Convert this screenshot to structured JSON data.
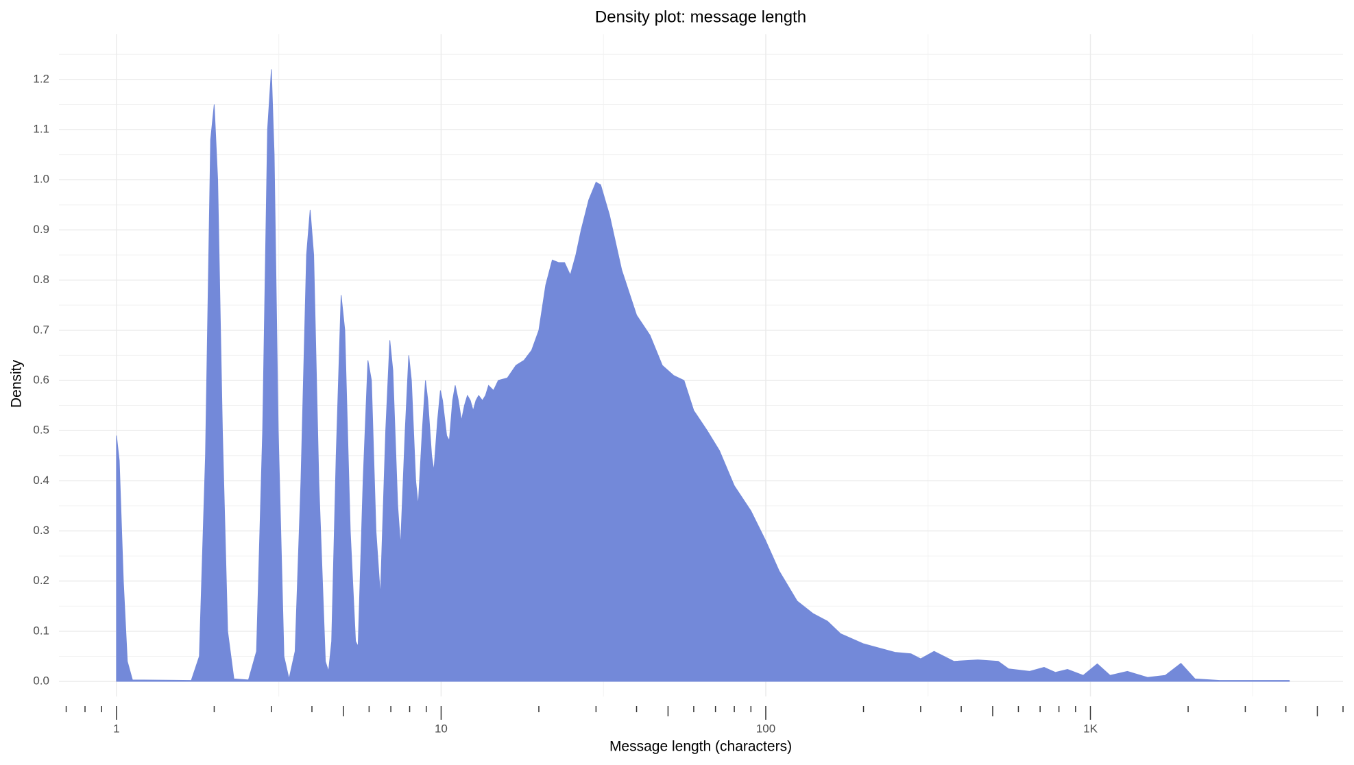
{
  "chart_data": {
    "type": "area",
    "title": "Density plot: message length",
    "xlabel": "Message length (characters)",
    "ylabel": "Density",
    "color": "#7389d9",
    "xscale": "log",
    "grid": true,
    "xlim": [
      0.665,
      6000
    ],
    "ylim": [
      -0.03,
      1.29
    ],
    "xticks": [
      1,
      10,
      100,
      {
        "value": 1000,
        "label": "1K"
      }
    ],
    "yticks": [
      {
        "value": 0,
        "label": "0.0"
      },
      0.1,
      0.2,
      0.3,
      0.4,
      0.5,
      0.6,
      0.7,
      0.8,
      0.9,
      {
        "value": 1,
        "label": "1.0"
      },
      1.1,
      1.2
    ],
    "x_minor_grid": [
      3.162,
      31.62,
      316.2,
      3162
    ],
    "y_minor_grid": [
      0.05,
      0.15,
      0.25,
      0.35,
      0.45,
      0.55,
      0.65,
      0.75,
      0.85,
      0.95,
      1.05,
      1.15,
      1.25
    ],
    "x_minor_ticks": [
      0.7,
      0.8,
      0.9,
      2,
      3,
      4,
      6,
      7,
      8,
      9,
      20,
      30,
      40,
      60,
      70,
      80,
      90,
      200,
      300,
      400,
      600,
      700,
      800,
      900,
      2000,
      3000,
      4000,
      6000
    ],
    "x_mid_ticks": [
      5,
      50,
      500,
      5000
    ],
    "x": [
      1,
      1.02,
      1.05,
      1.08,
      1.12,
      1.7,
      1.8,
      1.88,
      1.95,
      2.0,
      2.05,
      2.12,
      2.2,
      2.3,
      2.55,
      2.7,
      2.82,
      2.92,
      3.0,
      3.06,
      3.15,
      3.28,
      3.4,
      3.55,
      3.7,
      3.85,
      3.95,
      4.05,
      4.2,
      4.4,
      4.5,
      4.6,
      4.75,
      4.92,
      5.05,
      5.25,
      5.45,
      5.55,
      5.75,
      5.95,
      6.1,
      6.3,
      6.5,
      6.75,
      6.95,
      7.1,
      7.35,
      7.5,
      7.75,
      7.95,
      8.1,
      8.35,
      8.5,
      8.75,
      8.95,
      9.1,
      9.35,
      9.5,
      9.75,
      9.95,
      10.1,
      10.4,
      10.6,
      10.85,
      11.05,
      11.3,
      11.55,
      11.8,
      12.05,
      12.3,
      12.55,
      12.8,
      13.05,
      13.4,
      13.7,
      14,
      14.5,
      15,
      16,
      17,
      18,
      19,
      20,
      21,
      22,
      23,
      24,
      25,
      26,
      27,
      28.5,
      30,
      31,
      33,
      36,
      40,
      44,
      48,
      52,
      56,
      60,
      66,
      72,
      80,
      90,
      100,
      110,
      125,
      140,
      155,
      170,
      200,
      250,
      280,
      300,
      330,
      380,
      450,
      520,
      560,
      650,
      720,
      780,
      850,
      950,
      1050,
      1150,
      1300,
      1500,
      1700,
      1900,
      2100,
      2500,
      4100
    ],
    "values": [
      0.49,
      0.44,
      0.2,
      0.04,
      0.003,
      0.002,
      0.05,
      0.45,
      1.08,
      1.15,
      1.0,
      0.5,
      0.1,
      0.005,
      0.003,
      0.06,
      0.5,
      1.1,
      1.22,
      1.05,
      0.5,
      0.05,
      0.005,
      0.06,
      0.4,
      0.85,
      0.94,
      0.85,
      0.4,
      0.04,
      0.02,
      0.08,
      0.45,
      0.77,
      0.7,
      0.3,
      0.08,
      0.07,
      0.4,
      0.64,
      0.6,
      0.3,
      0.17,
      0.5,
      0.68,
      0.62,
      0.35,
      0.27,
      0.5,
      0.65,
      0.6,
      0.4,
      0.35,
      0.5,
      0.6,
      0.56,
      0.45,
      0.42,
      0.52,
      0.58,
      0.56,
      0.49,
      0.48,
      0.56,
      0.59,
      0.56,
      0.52,
      0.55,
      0.57,
      0.56,
      0.54,
      0.56,
      0.57,
      0.56,
      0.57,
      0.59,
      0.58,
      0.6,
      0.605,
      0.63,
      0.64,
      0.66,
      0.7,
      0.79,
      0.84,
      0.835,
      0.835,
      0.81,
      0.85,
      0.9,
      0.96,
      0.995,
      0.99,
      0.93,
      0.82,
      0.73,
      0.69,
      0.63,
      0.61,
      0.6,
      0.54,
      0.5,
      0.46,
      0.39,
      0.34,
      0.28,
      0.22,
      0.16,
      0.135,
      0.12,
      0.095,
      0.075,
      0.058,
      0.055,
      0.045,
      0.06,
      0.04,
      0.043,
      0.04,
      0.025,
      0.02,
      0.028,
      0.018,
      0.024,
      0.012,
      0.035,
      0.012,
      0.02,
      0.008,
      0.012,
      0.036,
      0.005,
      0.002,
      0.002
    ]
  }
}
